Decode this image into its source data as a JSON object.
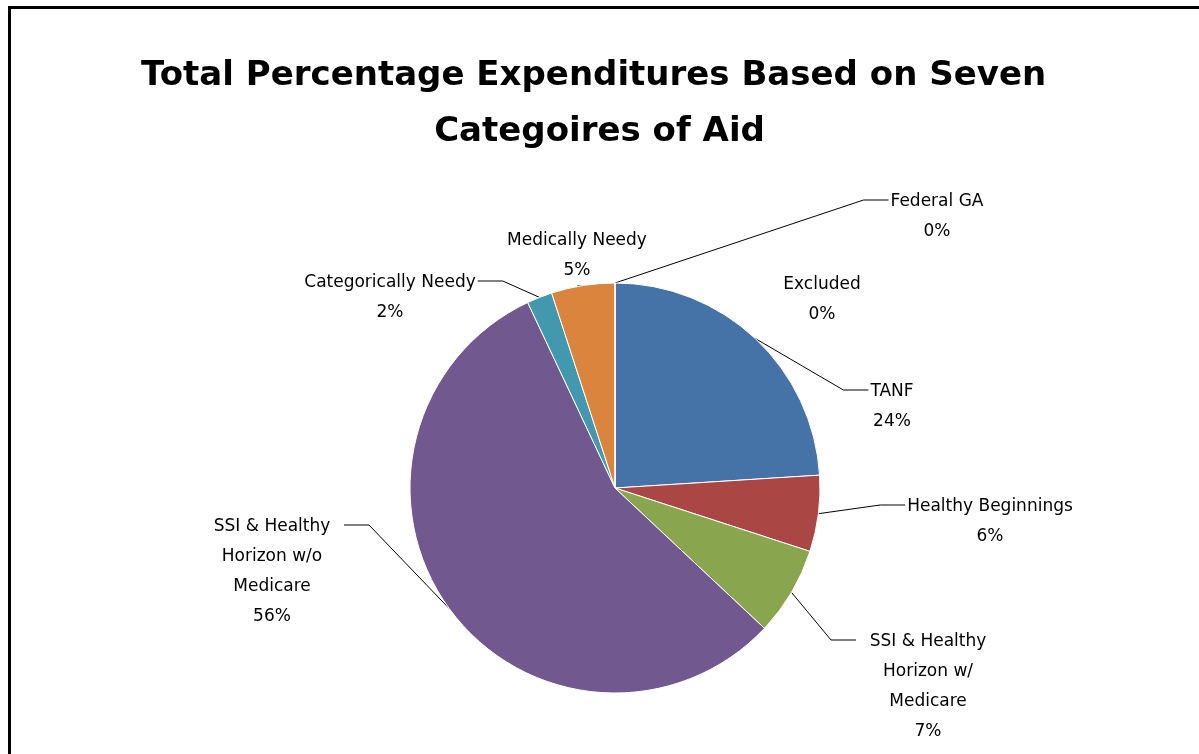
{
  "chart_data": {
    "type": "pie",
    "title": "Total Percentage Expenditures Based on Seven Categoires of Aid",
    "categories": [
      "Excluded",
      "TANF",
      "Healthy Beginnings",
      "SSI & Healthy Horizon w/ Medicare",
      "SSI & Healthy Horizon w/o Medicare",
      "Categorically Needy",
      "Medically Needy",
      "Federal GA"
    ],
    "values": [
      0,
      24,
      6,
      7,
      56,
      2,
      5,
      0
    ],
    "colors": [
      "#b9cd96",
      "#4572a7",
      "#aa4643",
      "#89a54e",
      "#71588f",
      "#4198af",
      "#db843d",
      "#93a9cf"
    ],
    "value_labels": [
      "0%",
      "24%",
      "6%",
      "7%",
      "56%",
      "2%",
      "5%",
      "0%"
    ]
  }
}
